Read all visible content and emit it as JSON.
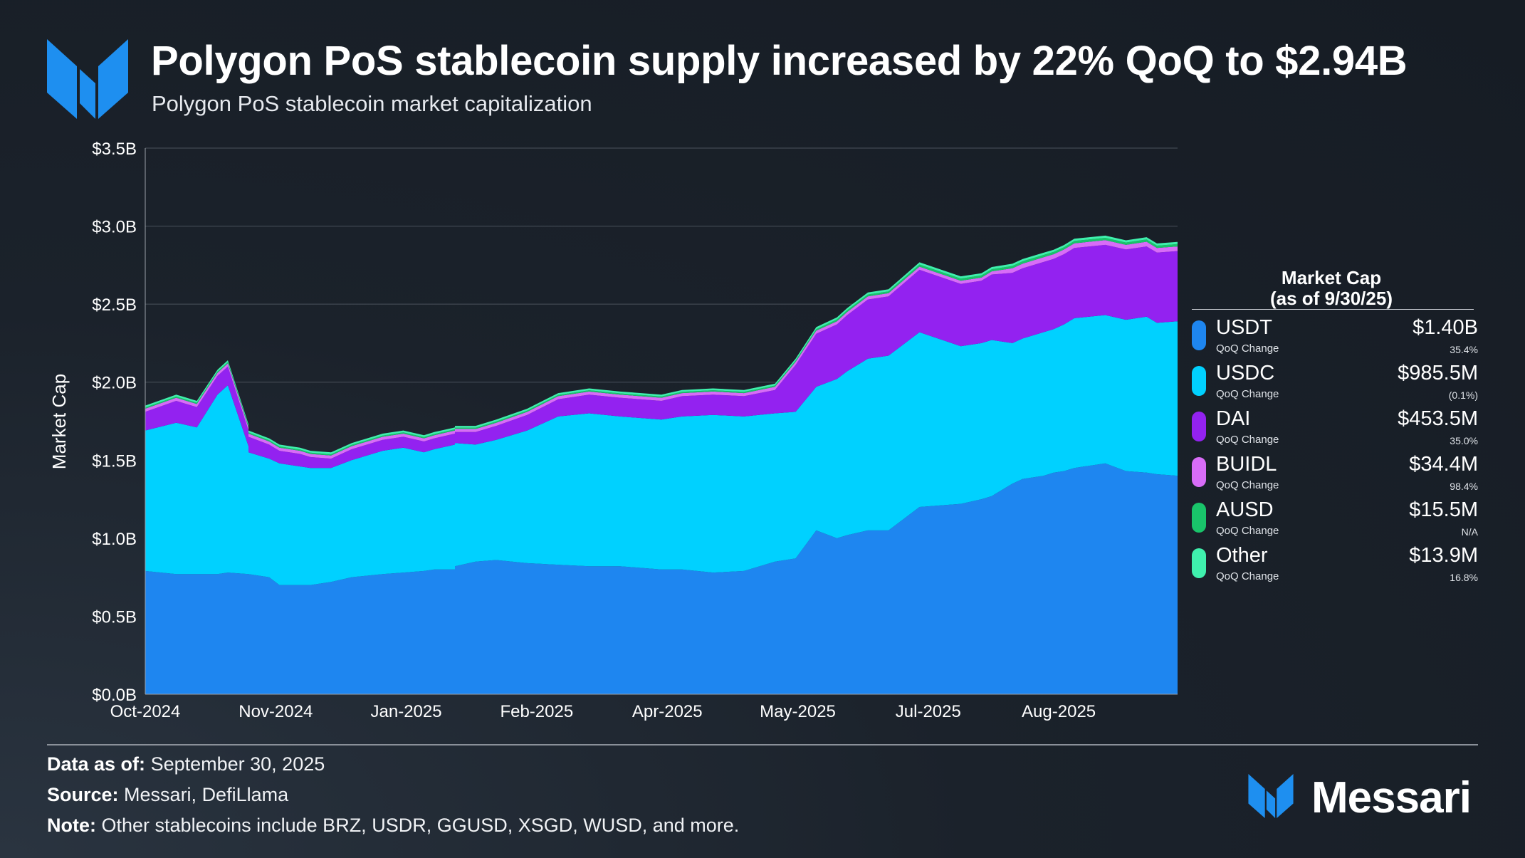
{
  "header": {
    "title": "Polygon PoS stablecoin supply increased by 22% QoQ to $2.94B",
    "subtitle": "Polygon PoS stablecoin market capitalization"
  },
  "colors": {
    "USDT": "#1e86f0",
    "USDC": "#00d1ff",
    "DAI": "#9322f0",
    "BUIDL": "#d86cf7",
    "AUSD": "#19c46a",
    "Other": "#3ff0ad"
  },
  "chart_data": {
    "type": "area",
    "stacked": true,
    "ylabel": "Market Cap",
    "ylim": [
      0,
      3.5
    ],
    "y_ticks": [
      "$0.0B",
      "$0.5B",
      "$1.0B",
      "$1.5B",
      "$2.0B",
      "$2.5B",
      "$3.0B",
      "$3.5B"
    ],
    "x_ticks": [
      {
        "label": "Oct-2024",
        "t": 0
      },
      {
        "label": "Nov-2024",
        "t": 0.1264
      },
      {
        "label": "Jan-2025",
        "t": 0.2528
      },
      {
        "label": "Feb-2025",
        "t": 0.3792
      },
      {
        "label": "Apr-2025",
        "t": 0.5057
      },
      {
        "label": "May-2025",
        "t": 0.6321
      },
      {
        "label": "Jul-2025",
        "t": 0.7585
      },
      {
        "label": "Aug-2025",
        "t": 0.8849
      }
    ],
    "t": [
      0,
      0.03,
      0.05,
      0.07,
      0.08,
      0.1,
      0.1,
      0.12,
      0.13,
      0.15,
      0.16,
      0.18,
      0.2,
      0.23,
      0.25,
      0.27,
      0.28,
      0.3,
      0.3,
      0.32,
      0.34,
      0.37,
      0.4,
      0.43,
      0.46,
      0.5,
      0.52,
      0.55,
      0.58,
      0.61,
      0.63,
      0.65,
      0.67,
      0.68,
      0.7,
      0.72,
      0.75,
      0.79,
      0.81,
      0.82,
      0.84,
      0.85,
      0.87,
      0.88,
      0.89,
      0.9,
      0.93,
      0.95,
      0.97,
      0.98,
      1
    ],
    "series": [
      {
        "name": "USDT",
        "values": [
          0.79,
          0.77,
          0.77,
          0.77,
          0.78,
          0.77,
          0.77,
          0.75,
          0.7,
          0.7,
          0.7,
          0.72,
          0.75,
          0.77,
          0.78,
          0.79,
          0.8,
          0.8,
          0.82,
          0.85,
          0.86,
          0.84,
          0.83,
          0.82,
          0.82,
          0.8,
          0.8,
          0.78,
          0.79,
          0.85,
          0.87,
          1.05,
          1.0,
          1.02,
          1.05,
          1.05,
          1.2,
          1.22,
          1.25,
          1.27,
          1.35,
          1.38,
          1.4,
          1.42,
          1.43,
          1.45,
          1.48,
          1.43,
          1.42,
          1.41,
          1.4
        ]
      },
      {
        "name": "USDC",
        "values": [
          0.9,
          0.97,
          0.94,
          1.15,
          1.2,
          0.82,
          0.78,
          0.76,
          0.78,
          0.76,
          0.75,
          0.73,
          0.75,
          0.79,
          0.8,
          0.76,
          0.77,
          0.8,
          0.79,
          0.75,
          0.77,
          0.85,
          0.95,
          0.98,
          0.96,
          0.96,
          0.98,
          1.01,
          0.99,
          0.95,
          0.94,
          0.92,
          1.02,
          1.05,
          1.1,
          1.12,
          1.12,
          1.01,
          1.0,
          1.0,
          0.9,
          0.9,
          0.92,
          0.92,
          0.94,
          0.96,
          0.95,
          0.97,
          1.0,
          0.97,
          0.99
        ]
      },
      {
        "name": "DAI",
        "values": [
          0.12,
          0.14,
          0.13,
          0.12,
          0.12,
          0.1,
          0.1,
          0.09,
          0.08,
          0.08,
          0.07,
          0.06,
          0.07,
          0.07,
          0.07,
          0.07,
          0.07,
          0.07,
          0.07,
          0.08,
          0.09,
          0.1,
          0.11,
          0.12,
          0.12,
          0.12,
          0.13,
          0.13,
          0.13,
          0.15,
          0.3,
          0.34,
          0.35,
          0.36,
          0.38,
          0.38,
          0.4,
          0.4,
          0.4,
          0.42,
          0.45,
          0.45,
          0.45,
          0.45,
          0.45,
          0.45,
          0.45,
          0.45,
          0.45,
          0.45,
          0.45
        ]
      },
      {
        "name": "BUIDL",
        "values": [
          0.02,
          0.02,
          0.02,
          0.02,
          0.02,
          0.02,
          0.02,
          0.02,
          0.02,
          0.02,
          0.02,
          0.02,
          0.02,
          0.02,
          0.02,
          0.02,
          0.02,
          0.02,
          0.02,
          0.02,
          0.02,
          0.02,
          0.02,
          0.02,
          0.02,
          0.02,
          0.02,
          0.02,
          0.02,
          0.02,
          0.02,
          0.02,
          0.02,
          0.02,
          0.02,
          0.02,
          0.02,
          0.02,
          0.02,
          0.02,
          0.03,
          0.03,
          0.03,
          0.03,
          0.03,
          0.03,
          0.03,
          0.03,
          0.03,
          0.03,
          0.03
        ]
      },
      {
        "name": "AUSD",
        "values": [
          0.008,
          0.008,
          0.008,
          0.008,
          0.008,
          0.008,
          0.008,
          0.008,
          0.008,
          0.008,
          0.008,
          0.008,
          0.008,
          0.008,
          0.008,
          0.008,
          0.008,
          0.008,
          0.008,
          0.008,
          0.008,
          0.008,
          0.008,
          0.008,
          0.008,
          0.008,
          0.008,
          0.008,
          0.008,
          0.008,
          0.008,
          0.01,
          0.012,
          0.012,
          0.012,
          0.012,
          0.014,
          0.014,
          0.014,
          0.014,
          0.015,
          0.015,
          0.015,
          0.015,
          0.015,
          0.015,
          0.015,
          0.015,
          0.015,
          0.015,
          0.015
        ]
      },
      {
        "name": "Other",
        "values": [
          0.012,
          0.012,
          0.012,
          0.012,
          0.012,
          0.012,
          0.012,
          0.012,
          0.012,
          0.012,
          0.012,
          0.012,
          0.012,
          0.012,
          0.012,
          0.012,
          0.012,
          0.012,
          0.012,
          0.012,
          0.012,
          0.012,
          0.012,
          0.012,
          0.012,
          0.012,
          0.012,
          0.012,
          0.012,
          0.012,
          0.012,
          0.013,
          0.013,
          0.013,
          0.013,
          0.013,
          0.014,
          0.014,
          0.014,
          0.014,
          0.014,
          0.014,
          0.014,
          0.014,
          0.014,
          0.014,
          0.014,
          0.014,
          0.014,
          0.014,
          0.014
        ]
      }
    ]
  },
  "legend": {
    "title_line1": "Market Cap",
    "title_line2": "(as of 9/30/25)",
    "items": [
      {
        "key": "USDT",
        "name": "USDT",
        "sub": "QoQ Change",
        "value": "$1.40B",
        "change": "35.4%"
      },
      {
        "key": "USDC",
        "name": "USDC",
        "sub": "QoQ Change",
        "value": "$985.5M",
        "change": "(0.1%)"
      },
      {
        "key": "DAI",
        "name": "DAI",
        "sub": "QoQ Change",
        "value": "$453.5M",
        "change": "35.0%"
      },
      {
        "key": "BUIDL",
        "name": "BUIDL",
        "sub": "QoQ Change",
        "value": "$34.4M",
        "change": "98.4%"
      },
      {
        "key": "AUSD",
        "name": "AUSD",
        "sub": "QoQ Change",
        "value": "$15.5M",
        "change": "N/A"
      },
      {
        "key": "Other",
        "name": "Other",
        "sub": "QoQ Change",
        "value": "$13.9M",
        "change": "16.8%"
      }
    ]
  },
  "footer": {
    "data_as_of_label": "Data as of:",
    "data_as_of_value": "September 30, 2025",
    "source_label": "Source:",
    "source_value": "Messari, DefiLlama",
    "note_label": "Note:",
    "note_value": "Other stablecoins include BRZ, USDR, GGUSD, XSGD, WUSD, and more."
  },
  "brand": {
    "name": "Messari"
  }
}
